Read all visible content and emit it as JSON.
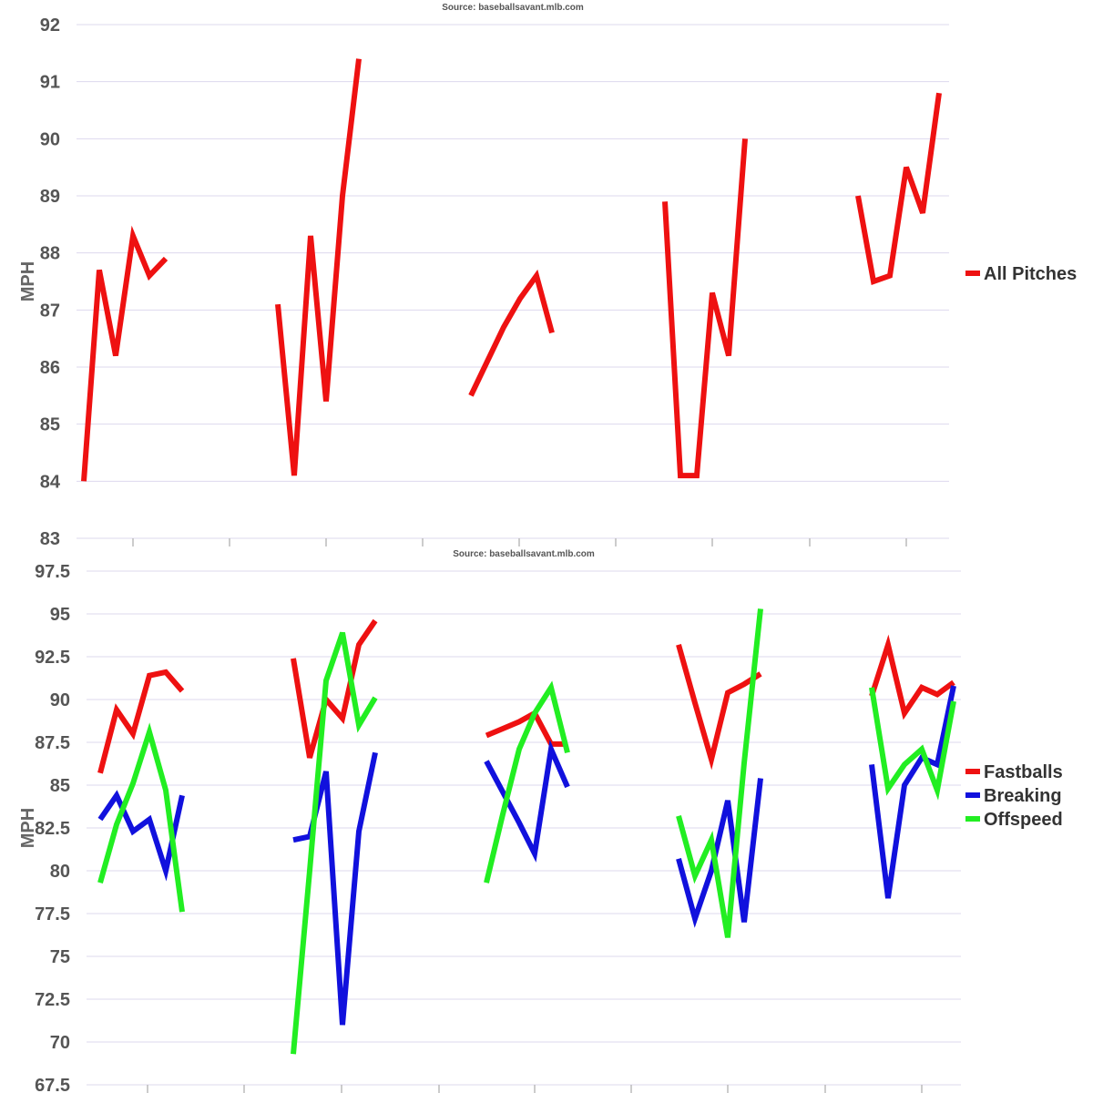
{
  "chart_data": [
    {
      "type": "line",
      "source": "Source: baseballsavant.mlb.com",
      "ylabel": "MPH",
      "ylim": [
        83,
        92
      ],
      "yticks": [
        "83",
        "84",
        "85",
        "86",
        "87",
        "88",
        "89",
        "90",
        "91",
        "92"
      ],
      "legend_position": "right",
      "series": [
        {
          "name": "All Pitches",
          "color": "#ee1111",
          "segments": [
            [
              84.0,
              87.7,
              86.2,
              88.3,
              87.6,
              87.9
            ],
            [
              87.1,
              84.1,
              88.3,
              85.4,
              89.0,
              91.4
            ],
            [
              85.5,
              86.1,
              86.7,
              87.2,
              87.6,
              86.6
            ],
            [
              88.9,
              84.1,
              84.1,
              87.3,
              86.2,
              90.0
            ],
            [
              89.0,
              87.5,
              87.6,
              89.5,
              88.7,
              90.8
            ]
          ]
        }
      ]
    },
    {
      "type": "line",
      "source": "Source: baseballsavant.mlb.com",
      "ylabel": "MPH",
      "ylim": [
        67.5,
        97.5
      ],
      "yticks": [
        "67.5",
        "70",
        "72.5",
        "75",
        "77.5",
        "80",
        "82.5",
        "85",
        "87.5",
        "90",
        "92.5",
        "95",
        "97.5"
      ],
      "legend_position": "right",
      "series": [
        {
          "name": "Fastballs",
          "color": "#ee1111",
          "segments": [
            [
              85.7,
              89.4,
              88.0,
              91.4,
              91.6,
              90.5
            ],
            [
              92.4,
              86.6,
              90.0,
              88.9,
              93.2,
              94.6
            ],
            [
              87.9,
              88.3,
              88.7,
              89.2,
              87.4,
              87.4
            ],
            [
              93.2,
              89.8,
              86.5,
              90.4,
              90.9,
              91.5
            ],
            [
              90.2,
              93.2,
              89.2,
              90.7,
              90.3,
              91.0
            ]
          ]
        },
        {
          "name": "Breaking",
          "color": "#1111dd",
          "segments": [
            [
              83.0,
              84.4,
              82.3,
              83.0,
              80.0,
              84.4
            ],
            [
              81.8,
              82.0,
              85.8,
              71.0,
              82.3,
              86.9
            ],
            [
              86.4,
              84.6,
              82.8,
              81.0,
              87.1,
              84.9
            ],
            [
              80.7,
              77.2,
              80.0,
              84.1,
              77.0,
              85.4
            ],
            [
              86.2,
              78.4,
              85.0,
              86.6,
              86.2,
              90.8
            ]
          ]
        },
        {
          "name": "Offspeed",
          "color": "#22ee22",
          "segments": [
            [
              79.3,
              82.7,
              85.1,
              88.1,
              84.7,
              77.6
            ],
            [
              69.3,
              80.0,
              91.1,
              93.9,
              88.5,
              90.1
            ],
            [
              79.3,
              83.3,
              87.1,
              89.2,
              90.7,
              86.9
            ],
            [
              83.2,
              79.7,
              81.8,
              76.1,
              86.3,
              95.3
            ],
            [
              90.7,
              84.8,
              86.2,
              87.1,
              84.7,
              89.9
            ]
          ]
        }
      ]
    }
  ]
}
